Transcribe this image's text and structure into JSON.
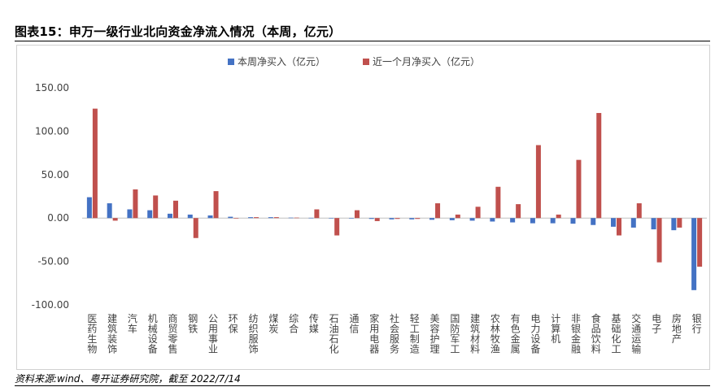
{
  "figure": {
    "title": "图表15：申万一级行业北向资金净流入情况（本周，亿元）",
    "source": "资料来源:wind、粤开证券研究院，截至 2022/7/14"
  },
  "colors": {
    "series_weekly": "#4472C4",
    "series_monthly": "#C0504D",
    "axis_text": "#404040",
    "zero_line": "#bfbfbf"
  },
  "chart_data": {
    "type": "bar",
    "title": "",
    "xlabel": "",
    "ylabel": "",
    "ylim": [
      -100,
      150
    ],
    "yticks": [
      150,
      100,
      50,
      0,
      -50,
      -100
    ],
    "ytick_labels": [
      "150.00",
      "100.00",
      "50.00",
      "0.00",
      "-50.00",
      "-100.00"
    ],
    "grid": false,
    "legend_position": "top-left",
    "categories": [
      "医药生物",
      "建筑装饰",
      "汽车",
      "机械设备",
      "商贸零售",
      "钢铁",
      "公用事业",
      "环保",
      "纺织服饰",
      "煤炭",
      "综合",
      "传媒",
      "石油石化",
      "通信",
      "家用电器",
      "社会服务",
      "轻工制造",
      "美容护理",
      "国防军工",
      "建筑材料",
      "农林牧渔",
      "有色金属",
      "电力设备",
      "计算机",
      "非银金融",
      "食品饮料",
      "基础化工",
      "交通运输",
      "电子",
      "房地产",
      "银行"
    ],
    "series": [
      {
        "name": "本周净买入（亿元）",
        "values": [
          24,
          17,
          10,
          9,
          5,
          4,
          3,
          1.5,
          1,
          1,
          0.5,
          0.3,
          0.2,
          0.1,
          -1,
          -1.5,
          -1.5,
          -2,
          -2.5,
          -3,
          -4,
          -5,
          -6,
          -6,
          -6.5,
          -8,
          -10,
          -11,
          -13,
          -14,
          -83
        ]
      },
      {
        "name": "近一个月净买入（亿元）",
        "values": [
          126,
          -3,
          33,
          26,
          20,
          -23,
          31,
          -0.5,
          1,
          1,
          0.5,
          10,
          -20,
          9,
          -3.5,
          -1,
          -1,
          17,
          4,
          13,
          36,
          16,
          84,
          4,
          67,
          121,
          -20,
          17,
          -51,
          -11,
          -56
        ]
      }
    ]
  }
}
